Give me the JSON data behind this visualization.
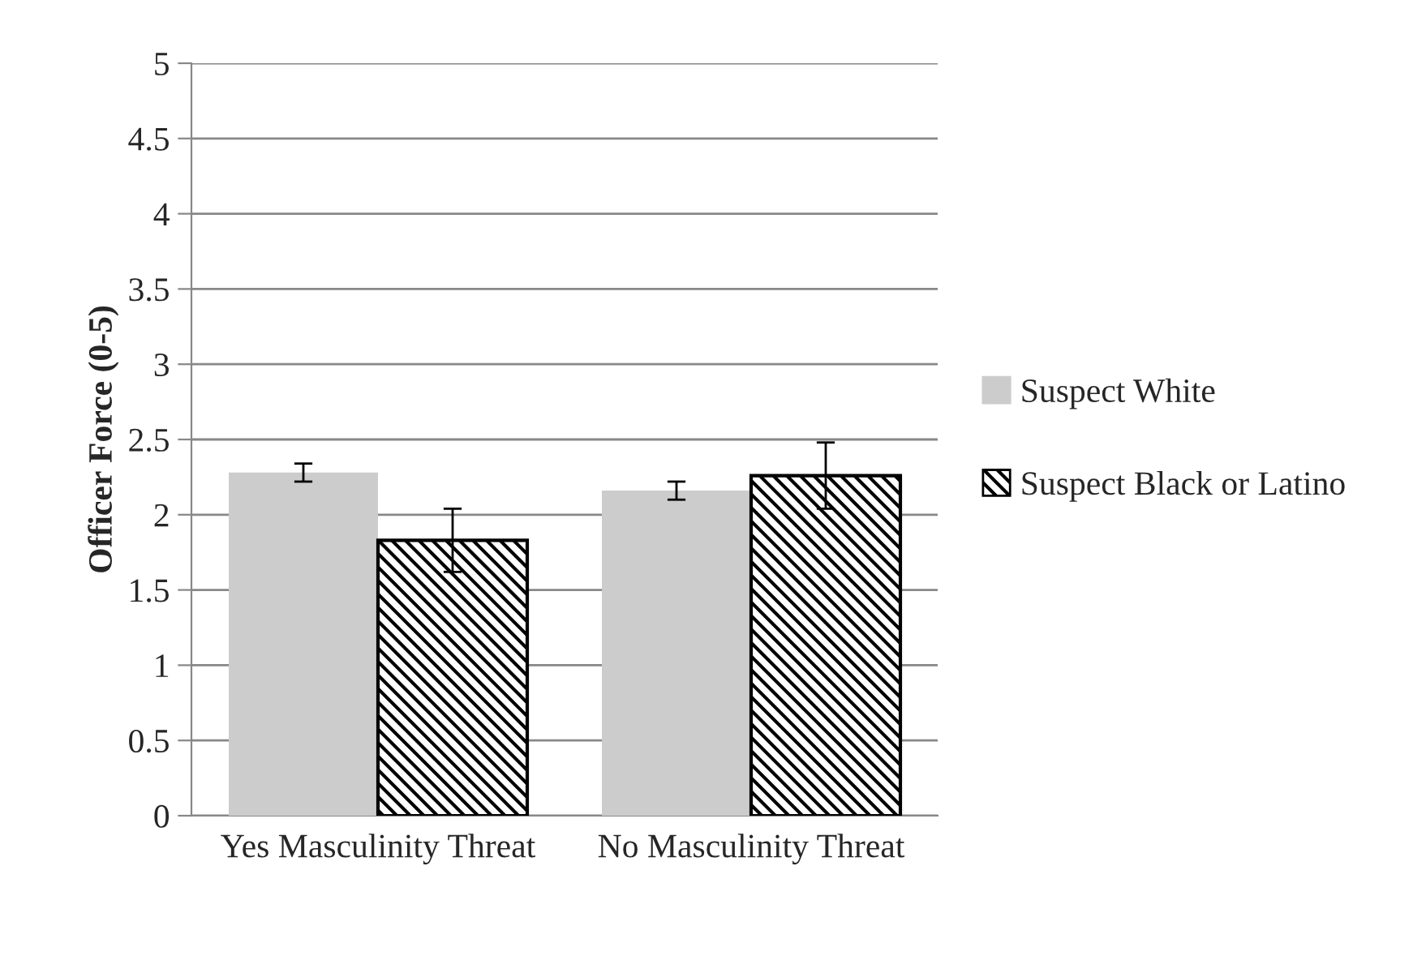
{
  "chart_data": {
    "type": "bar",
    "ylabel": "Officer Force (0-5)",
    "categories": [
      "Yes Masculinity Threat",
      "No Masculinity Threat"
    ],
    "series": [
      {
        "name": "Suspect White",
        "color": "#cccccc",
        "values": [
          2.28,
          2.16
        ],
        "errors": [
          0.06,
          0.06
        ]
      },
      {
        "name": "Suspect Black or Latino",
        "color": "#000000",
        "values": [
          1.83,
          2.26
        ],
        "errors": [
          0.21,
          0.22
        ]
      }
    ],
    "ylim": [
      0,
      5
    ],
    "yticks": [
      0,
      0.5,
      1,
      1.5,
      2,
      2.5,
      3,
      3.5,
      4,
      4.5,
      5
    ],
    "grid": "y",
    "legend": "right"
  }
}
